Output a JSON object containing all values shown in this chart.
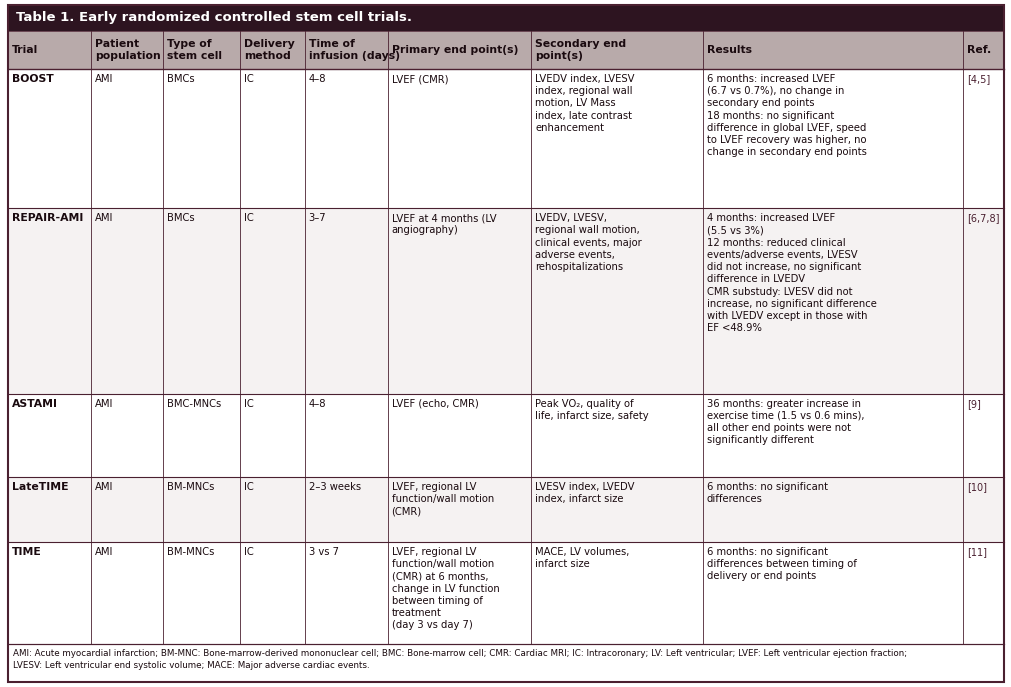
{
  "title": "Table 1. Early randomized controlled stem cell trials.",
  "title_bg": "#2d1420",
  "title_color": "#ffffff",
  "header_bg": "#b8aaaa",
  "header_color": "#1a0a0f",
  "row_bg_white": "#ffffff",
  "row_bg_light": "#f5f2f2",
  "border_color": "#4a2030",
  "text_color": "#1a0a0f",
  "ref_color": "#4a2030",
  "footnote_bg": "#ffffff",
  "columns": [
    "Trial",
    "Patient\npopulation",
    "Type of\nstem cell",
    "Delivery\nmethod",
    "Time of\ninfusion (days)",
    "Primary end point(s)",
    "Secondary end\npoint(s)",
    "Results",
    "Ref."
  ],
  "col_widths_pct": [
    7.5,
    6.5,
    7.0,
    5.8,
    7.5,
    13.0,
    15.5,
    23.5,
    3.7
  ],
  "rows": [
    {
      "trial": "BOOST",
      "population": "AMI",
      "stem_cell": "BMCs",
      "delivery": "IC",
      "time": "4–8",
      "primary": "LVEF (CMR)",
      "secondary": "LVEDV index, LVESV\nindex, regional wall\nmotion, LV Mass\nindex, late contrast\nenhancement",
      "results": "6 months: increased LVEF\n(6.7 vs 0.7%), no change in\nsecondary end points\n18 months: no significant\ndifference in global LVEF, speed\nto LVEF recovery was higher, no\nchange in secondary end points",
      "ref": "[4,5]",
      "bg": "#ffffff"
    },
    {
      "trial": "REPAIR-AMI",
      "population": "AMI",
      "stem_cell": "BMCs",
      "delivery": "IC",
      "time": "3–7",
      "primary": "LVEF at 4 months (LV\nangiography)",
      "secondary": "LVEDV, LVESV,\nregional wall motion,\nclinical events, major\nadverse events,\nrehospitalizations",
      "results": "4 months: increased LVEF\n(5.5 vs 3%)\n12 months: reduced clinical\nevents/adverse events, LVESV\ndid not increase, no significant\ndifference in LVEDV\nCMR substudy: LVESV did not\nincrease, no significant difference\nwith LVEDV except in those with\nEF <48.9%",
      "ref": "[6,7,8]",
      "bg": "#f5f2f2"
    },
    {
      "trial": "ASTAMI",
      "population": "AMI",
      "stem_cell": "BMC-MNCs",
      "delivery": "IC",
      "time": "4–8",
      "primary": "LVEF (echo, CMR)",
      "secondary": "Peak VO₂, quality of\nlife, infarct size, safety",
      "results": "36 months: greater increase in\nexercise time (1.5 vs 0.6 mins),\nall other end points were not\nsignificantly different",
      "ref": "[9]",
      "bg": "#ffffff"
    },
    {
      "trial": "LateTIME",
      "population": "AMI",
      "stem_cell": "BM-MNCs",
      "delivery": "IC",
      "time": "2–3 weeks",
      "primary": "LVEF, regional LV\nfunction/wall motion\n(CMR)",
      "secondary": "LVESV index, LVEDV\nindex, infarct size",
      "results": "6 months: no significant\ndifferences",
      "ref": "[10]",
      "bg": "#f5f2f2"
    },
    {
      "trial": "TIME",
      "population": "AMI",
      "stem_cell": "BM-MNCs",
      "delivery": "IC",
      "time": "3 vs 7",
      "primary": "LVEF, regional LV\nfunction/wall motion\n(CMR) at 6 months,\nchange in LV function\nbetween timing of\ntreatment\n(day 3 vs day 7)",
      "secondary": "MACE, LV volumes,\ninfarct size",
      "results": "6 months: no significant\ndifferences between timing of\ndelivery or end points",
      "ref": "[11]",
      "bg": "#ffffff"
    }
  ],
  "footnote": "AMI: Acute myocardial infarction; BM-MNC: Bone-marrow-derived mononuclear cell; BMC: Bone-marrow cell; CMR: Cardiac MRI; IC: Intracoronary; LV: Left ventricular; LVEF: Left ventricular ejection fraction;\nLVESV: Left ventricular end systolic volume; MACE: Major adverse cardiac events.",
  "figsize": [
    10.12,
    6.87
  ],
  "dpi": 100
}
